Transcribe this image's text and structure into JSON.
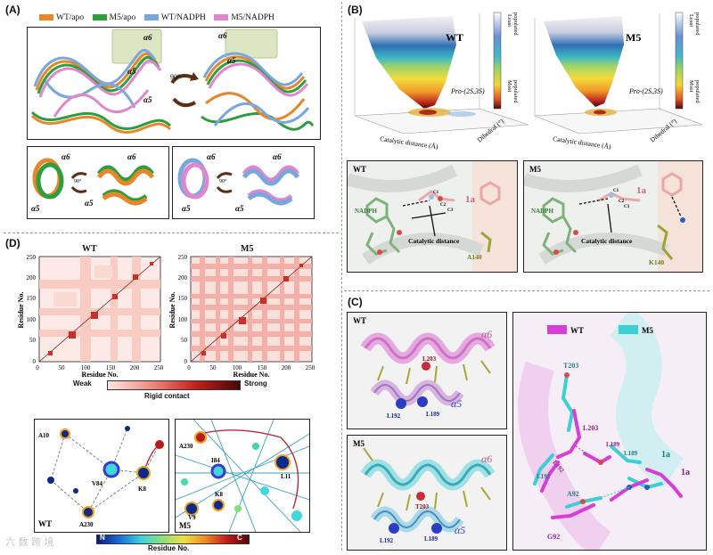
{
  "panels": {
    "a": {
      "label": "(A)"
    },
    "b": {
      "label": "(B)"
    },
    "c": {
      "label": "(C)"
    },
    "d": {
      "label": "(D)"
    }
  },
  "panel_a": {
    "legend": [
      {
        "name": "WT/apo",
        "color": "#e8862a"
      },
      {
        "name": "M5/apo",
        "color": "#2e9d3e"
      },
      {
        "name": "WT/NADPH",
        "color": "#7aa6de"
      },
      {
        "name": "M5/NADPH",
        "color": "#df86cf"
      }
    ],
    "helix_a6": "α6",
    "helix_a5": "α5",
    "rotation": "90°"
  },
  "panel_b": {
    "wt_title": "WT",
    "m5_title": "M5",
    "colorbar_top": "Least populated",
    "colorbar_bottom": "Most populated",
    "cb_top_l1": "Least",
    "cb_top_l2": "populated",
    "cb_bot_l1": "Most",
    "cb_bot_l2": "populated",
    "pro_label": "Pro-(2S,3S)",
    "x_axis": "Catalytic distance (Å)",
    "y_axis": "Dihedral (°)",
    "wt_struct": {
      "title": "WT",
      "nadph": "NADPH",
      "ligand": "1a",
      "residue": "A140",
      "distance": "Catalytic distance",
      "c1": "C1",
      "c2": "C2",
      "c3": "C3"
    },
    "m5_struct": {
      "title": "M5",
      "nadph": "NADPH",
      "ligand": "1a",
      "residue": "K140",
      "distance": "Catalytic distance",
      "c1": "C1",
      "c2": "C2",
      "c3": "C3"
    }
  },
  "panel_c": {
    "wt_title": "WT",
    "m5_title": "M5",
    "wt_labels": {
      "a6": "α6",
      "a5": "α5",
      "r1": "L203",
      "r2": "L189",
      "r3": "L192"
    },
    "m5_labels": {
      "a6": "α6",
      "a5": "α5",
      "r1": "T203",
      "r2": "L189",
      "r3": "L192"
    },
    "legend_wt": "WT",
    "legend_m5": "M5",
    "wt_color": "#d63fd6",
    "m5_color": "#3ccfd4",
    "overlay": {
      "t203": "T203",
      "l203": "L203",
      "l189_wt": "L189",
      "l189_m5": "L189",
      "l192_wt": "L192",
      "l192_m5": "L192",
      "la_m5": "1a",
      "la_wt": "1a",
      "a92": "A92",
      "g92": "G92"
    }
  },
  "panel_d": {
    "wt_title": "WT",
    "m5_title": "M5",
    "x_label": "Residue No.",
    "y_label": "Residue No.",
    "ticks": [
      "0",
      "50",
      "100",
      "150",
      "200",
      "250"
    ],
    "weak": "Weak",
    "strong": "Strong",
    "contact_label": "Rigid contact",
    "net_wt": {
      "title": "WT",
      "nodes": [
        "A10",
        "V84",
        "K8",
        "A230"
      ]
    },
    "net_m5": {
      "title": "M5",
      "nodes": [
        "A230",
        "I84",
        "L11",
        "K8",
        "V9"
      ]
    },
    "residue_bar": {
      "n": "N",
      "c": "C",
      "label": "Residue No."
    }
  },
  "watermark": "六 数 跨 境"
}
